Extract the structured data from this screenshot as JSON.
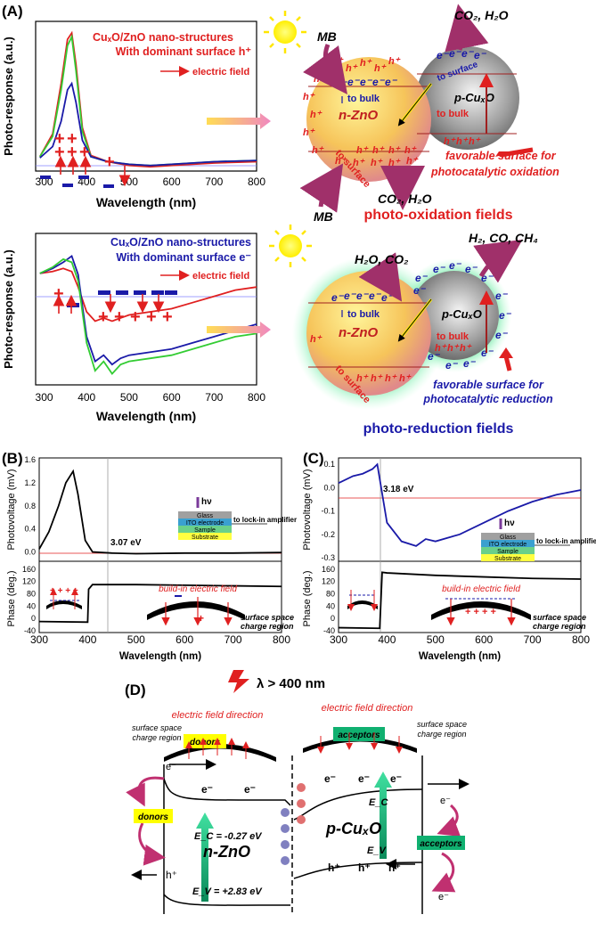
{
  "panelA": {
    "label": "(A)",
    "top": {
      "ylabel": "Photo-response (a.u.)",
      "xlabel": "Wavelength (nm)",
      "xticks": [
        "300",
        "400",
        "500",
        "600",
        "700",
        "800"
      ],
      "title_line1": "CuₓO/ZnO nano-structures",
      "title_line2": "With dominant surface h⁺",
      "arrow_label": "electric field"
    },
    "bottom": {
      "ylabel": "Photo-response (a.u.)",
      "xlabel": "Wavelength (nm)",
      "xticks": [
        "300",
        "400",
        "500",
        "600",
        "700",
        "800"
      ],
      "title_line1": "CuₓO/ZnO nano-structures",
      "title_line2": "With dominant surface e⁻",
      "arrow_label": "electric field"
    },
    "oxidation": {
      "MB_top": "MB",
      "MB_bottom": "MB",
      "products_top": "CO₂, H₂O",
      "products_bottom": "CO₂, H₂O",
      "nZnO": "n-ZnO",
      "pCuxO": "p-CuₓO",
      "to_bulk": "to bulk",
      "to_surface": "to surface",
      "to_bulk2": "to bulk",
      "to_surface2": "to surface",
      "note_line1": "favorable surface for",
      "note_line2": "photocatalytic oxidation",
      "field_title": "photo-oxidation fields"
    },
    "reduction": {
      "reactants": "H₂O, CO₂",
      "products": "H₂, CO, CH₄",
      "nZnO": "n-ZnO",
      "pCuxO": "p-CuₓO",
      "to_bulk": "to bulk",
      "to_surface": "to surface",
      "to_bulk2": "to bulk",
      "note_line1": "favorable surface for",
      "note_line2": "photocatalytic reduction",
      "field_title": "photo-reduction fields"
    }
  },
  "panelB": {
    "label": "(B)",
    "ylabel_top": "Photovoltage (mV)",
    "ylabel_bottom": "Phase (deg.)",
    "xlabel": "Wavelength (nm)",
    "yticks_top": [
      "0.0",
      "0.4",
      "0.8",
      "1.2",
      "1.6"
    ],
    "yticks_bottom": [
      "-40",
      "0",
      "40",
      "80",
      "120",
      "160"
    ],
    "xticks": [
      "300",
      "400",
      "500",
      "600",
      "700",
      "800"
    ],
    "edge_label": "3.07 eV",
    "hv": "hν",
    "layers": [
      "Glass",
      "ITO electrode",
      "Sample",
      "Substrate"
    ],
    "lockin": "to lock-in amplifier",
    "field_label": "build-in electric field",
    "space_charge_line1": "surface space",
    "space_charge_line2": "charge region"
  },
  "panelC": {
    "label": "(C)",
    "ylabel_top": "Photovoltage (mV)",
    "ylabel_bottom": "Phase (deg.)",
    "xlabel": "Wavelength (nm)",
    "yticks_top": [
      "0.1",
      "0.0",
      "-0.1",
      "-0.2",
      "-0.3"
    ],
    "yticks_bottom": [
      "-40",
      "0",
      "40",
      "80",
      "120",
      "160"
    ],
    "xticks": [
      "300",
      "400",
      "500",
      "600",
      "700",
      "800"
    ],
    "edge_label": "3.18 eV",
    "hv": "hν",
    "layers": [
      "Glass",
      "ITO electrode",
      "Sample",
      "Substrate"
    ],
    "lockin": "to lock-in amplifier",
    "field_label": "build-in electric field",
    "space_charge_line1": "surface space",
    "space_charge_line2": "charge region"
  },
  "panelD": {
    "label": "(D)",
    "lambda": "λ > 400 nm",
    "efield_left": "electric field direction",
    "efield_right": "electric field direction",
    "space_left_line1": "surface space",
    "space_left_line2": "charge region",
    "space_right_line1": "surface space",
    "space_right_line2": "charge region",
    "donors_top": "donors",
    "acceptors_top": "acceptors",
    "donors_side": "donors",
    "acceptors_side": "acceptors",
    "Ec_zno": "E_C = -0.27 eV",
    "Ev_zno": "E_V = +2.83 eV",
    "nZnO": "n-ZnO",
    "pCuxO": "p-CuₓO",
    "Ec_cu": "E_C",
    "Ev_cu": "E_V",
    "electron": "e⁻",
    "hole": "h⁺"
  },
  "chart_data": [
    {
      "type": "line",
      "title": "CuₓO/ZnO nano-structures With dominant surface h⁺",
      "xlabel": "Wavelength (nm)",
      "ylabel": "Photo-response (a.u.)",
      "xlim": [
        280,
        800
      ],
      "x": [
        290,
        320,
        340,
        355,
        365,
        375,
        390,
        410,
        450,
        500,
        550,
        600,
        700,
        800
      ],
      "series": [
        {
          "color": "#e02020",
          "values": [
            0.02,
            0.2,
            0.6,
            0.95,
            1.0,
            0.75,
            0.25,
            0.03,
            -0.02,
            -0.05,
            -0.06,
            -0.05,
            -0.03,
            -0.02
          ]
        },
        {
          "color": "#33cc33",
          "values": [
            0.02,
            0.18,
            0.55,
            0.9,
            0.97,
            0.7,
            0.22,
            0.02,
            -0.02,
            -0.04,
            -0.05,
            -0.04,
            -0.02,
            -0.01
          ]
        },
        {
          "color": "#1a1aa8",
          "values": [
            0.01,
            0.1,
            0.3,
            0.55,
            0.6,
            0.45,
            0.15,
            0.02,
            -0.02,
            -0.04,
            -0.05,
            -0.04,
            -0.02,
            -0.01
          ]
        }
      ]
    },
    {
      "type": "line",
      "title": "CuₓO/ZnO nano-structures With dominant surface e⁻",
      "xlabel": "Wavelength (nm)",
      "ylabel": "Photo-response (a.u.)",
      "xlim": [
        280,
        800
      ],
      "x": [
        290,
        320,
        345,
        365,
        380,
        400,
        420,
        440,
        460,
        480,
        500,
        550,
        600,
        650,
        700,
        750,
        800
      ],
      "series": [
        {
          "color": "#e02020",
          "values": [
            0.02,
            0.05,
            0.1,
            0.05,
            -0.2,
            -0.6,
            -0.75,
            -0.7,
            -0.75,
            -0.7,
            -0.65,
            -0.6,
            -0.55,
            -0.45,
            -0.35,
            -0.25,
            -0.2
          ]
        },
        {
          "color": "#1a1aa8",
          "values": [
            0.02,
            0.1,
            0.2,
            0.3,
            0.0,
            -1.0,
            -1.4,
            -1.3,
            -1.45,
            -1.35,
            -1.3,
            -1.25,
            -1.2,
            -1.1,
            -1.0,
            -0.9,
            -0.8
          ]
        },
        {
          "color": "#33cc33",
          "values": [
            0.02,
            0.12,
            0.25,
            0.2,
            -0.1,
            -1.1,
            -1.55,
            -1.4,
            -1.6,
            -1.45,
            -1.4,
            -1.35,
            -1.3,
            -1.2,
            -1.1,
            -1.0,
            -0.95
          ]
        }
      ]
    },
    {
      "type": "line",
      "title": "",
      "xlabel": "Wavelength (nm)",
      "ylabel": "Photovoltage (mV)",
      "xlim": [
        300,
        800
      ],
      "ylim": [
        -0.1,
        1.6
      ],
      "x": [
        300,
        320,
        340,
        355,
        370,
        380,
        395,
        410,
        450,
        500,
        600,
        700,
        800
      ],
      "series": [
        {
          "color": "#000000",
          "values": [
            0.05,
            0.35,
            0.8,
            1.2,
            1.4,
            1.0,
            0.2,
            0.0,
            -0.02,
            -0.03,
            -0.02,
            -0.02,
            -0.01
          ]
        }
      ]
    },
    {
      "type": "line",
      "title": "",
      "xlabel": "Wavelength (nm)",
      "ylabel": "Phase (deg.)",
      "xlim": [
        300,
        800
      ],
      "ylim": [
        -40,
        180
      ],
      "x": [
        300,
        400,
        402,
        410,
        500,
        600,
        700,
        800
      ],
      "series": [
        {
          "color": "#000000",
          "values": [
            -10,
            -12,
            95,
            110,
            110,
            108,
            106,
            104
          ]
        }
      ]
    },
    {
      "type": "line",
      "title": "",
      "xlabel": "Wavelength (nm)",
      "ylabel": "Photovoltage (mV)",
      "xlim": [
        300,
        800
      ],
      "ylim": [
        -0.3,
        0.12
      ],
      "x": [
        300,
        330,
        350,
        370,
        380,
        400,
        430,
        460,
        480,
        500,
        550,
        600,
        650,
        700,
        750,
        800
      ],
      "series": [
        {
          "color": "#1a1aa8",
          "values": [
            0.02,
            0.05,
            0.06,
            0.08,
            0.1,
            -0.15,
            -0.23,
            -0.25,
            -0.22,
            -0.23,
            -0.2,
            -0.15,
            -0.1,
            -0.06,
            -0.03,
            -0.01
          ]
        }
      ]
    },
    {
      "type": "line",
      "title": "",
      "xlabel": "Wavelength (nm)",
      "ylabel": "Phase (deg.)",
      "xlim": [
        300,
        800
      ],
      "ylim": [
        -40,
        180
      ],
      "x": [
        300,
        385,
        390,
        400,
        500,
        600,
        700,
        800
      ],
      "series": [
        {
          "color": "#000000",
          "values": [
            -30,
            -32,
            150,
            148,
            140,
            135,
            130,
            128
          ]
        }
      ]
    }
  ]
}
